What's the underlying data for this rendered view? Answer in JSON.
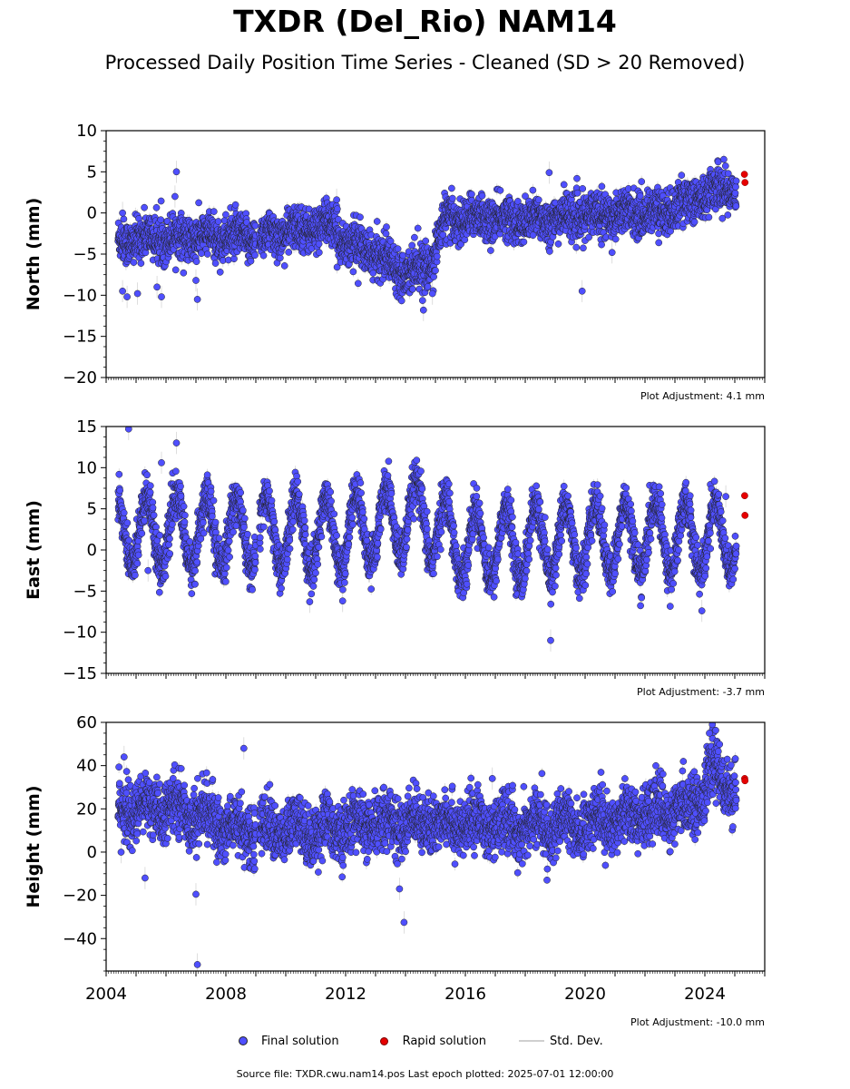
{
  "figure": {
    "title": "TXDR (Del_Rio) NAM14",
    "subtitle": "Processed Daily Position Time Series - Cleaned (SD > 20 Removed)",
    "source_note": "Source file: TXDR.cwu.nam14.pos  Last epoch plotted: 2025-07-01 12:00:00"
  },
  "legend": {
    "final": "Final solution",
    "rapid": "Rapid solution",
    "stddev": "Std. Dev."
  },
  "colors": {
    "final_fill": "#4F4FFF",
    "final_edge": "#222222",
    "rapid": "#e60000",
    "stddev": "#cfcfcf"
  },
  "chart_data": [
    {
      "type": "scatter",
      "ylabel": "North (mm)",
      "ylim": [
        -20,
        10
      ],
      "yticks": [
        10,
        5,
        0,
        -5,
        -10,
        -15,
        -20
      ],
      "xlim": [
        2004.0,
        2026.0
      ],
      "xticks": [
        2004,
        2008,
        2012,
        2016,
        2020,
        2024
      ],
      "adjustment": "Plot Adjustment: 4.1 mm",
      "trend": [
        [
          2004.4,
          -3.5
        ],
        [
          2005.5,
          -3.0
        ],
        [
          2007.0,
          -3.0
        ],
        [
          2009.0,
          -3.0
        ],
        [
          2010.5,
          -2.0
        ],
        [
          2011.5,
          -1.5
        ],
        [
          2012.0,
          -3.5
        ],
        [
          2013.0,
          -5.0
        ],
        [
          2014.0,
          -7.0
        ],
        [
          2014.8,
          -6.5
        ],
        [
          2015.3,
          -1.0
        ],
        [
          2016.5,
          -0.5
        ],
        [
          2018.0,
          -1.0
        ],
        [
          2019.5,
          -0.5
        ],
        [
          2021.0,
          0.0
        ],
        [
          2022.5,
          0.0
        ],
        [
          2023.5,
          1.5
        ],
        [
          2024.5,
          3.0
        ],
        [
          2025.0,
          3.0
        ]
      ],
      "noise_sd": 1.3,
      "season_amp": 0.5,
      "outliers": [
        [
          2006.35,
          5.0
        ],
        [
          2006.3,
          2.0
        ],
        [
          2005.05,
          -9.8
        ],
        [
          2005.7,
          -9.0
        ],
        [
          2005.85,
          -10.2
        ],
        [
          2007.05,
          -10.5
        ],
        [
          2007.0,
          -8.2
        ],
        [
          2004.7,
          -10.2
        ],
        [
          2014.6,
          -11.8
        ],
        [
          2014.9,
          -9.8
        ],
        [
          2019.9,
          -9.5
        ],
        [
          2018.8,
          4.9
        ],
        [
          2004.55,
          -9.5
        ],
        [
          2004.55,
          0.0
        ],
        [
          2011.7,
          1.6
        ],
        [
          2020.9,
          -4.8
        ]
      ],
      "rapid": [
        [
          2025.32,
          4.7
        ],
        [
          2025.34,
          3.7
        ]
      ]
    },
    {
      "type": "scatter",
      "ylabel": "East (mm)",
      "ylim": [
        -15,
        15
      ],
      "yticks": [
        15,
        10,
        5,
        0,
        -5,
        -10,
        -15
      ],
      "xlim": [
        2004.0,
        2026.0
      ],
      "xticks": [
        2004,
        2008,
        2012,
        2016,
        2020,
        2024
      ],
      "adjustment": "Plot Adjustment: -3.7 mm",
      "trend": [
        [
          2004.4,
          2.5
        ],
        [
          2008.0,
          2.0
        ],
        [
          2012.0,
          2.0
        ],
        [
          2014.5,
          4.0
        ],
        [
          2016.0,
          0.5
        ],
        [
          2019.0,
          1.0
        ],
        [
          2022.0,
          1.5
        ],
        [
          2025.0,
          1.5
        ]
      ],
      "noise_sd": 1.3,
      "season_amp": 4.3,
      "outliers": [
        [
          2004.75,
          14.7
        ],
        [
          2006.35,
          13.0
        ],
        [
          2005.85,
          10.6
        ],
        [
          2018.85,
          -11.0
        ],
        [
          2023.9,
          -7.4
        ],
        [
          2010.8,
          -6.3
        ],
        [
          2011.9,
          -6.2
        ],
        [
          2024.7,
          6.5
        ],
        [
          2005.4,
          -2.5
        ]
      ],
      "rapid": [
        [
          2025.33,
          6.6
        ],
        [
          2025.34,
          4.2
        ]
      ]
    },
    {
      "type": "scatter",
      "ylabel": "Height (mm)",
      "ylim": [
        -55,
        60
      ],
      "yticks": [
        60,
        40,
        20,
        0,
        -20,
        -40
      ],
      "xlim": [
        2004.0,
        2026.0
      ],
      "xticks": [
        2004,
        2008,
        2012,
        2016,
        2020,
        2024
      ],
      "adjustment": "Plot Adjustment: -10.0 mm",
      "trend": [
        [
          2004.4,
          20.0
        ],
        [
          2006.5,
          20.0
        ],
        [
          2008.5,
          10.0
        ],
        [
          2011.0,
          10.0
        ],
        [
          2013.0,
          13.0
        ],
        [
          2015.0,
          14.0
        ],
        [
          2017.0,
          12.0
        ],
        [
          2019.5,
          12.0
        ],
        [
          2021.5,
          17.0
        ],
        [
          2023.5,
          20.0
        ],
        [
          2024.3,
          38.0
        ],
        [
          2025.0,
          27.0
        ]
      ],
      "noise_sd": 6.5,
      "season_amp": 4.0,
      "outliers": [
        [
          2007.05,
          -52.0
        ],
        [
          2007.0,
          -19.5
        ],
        [
          2013.95,
          -32.5
        ],
        [
          2008.6,
          48.0
        ],
        [
          2024.25,
          59.0
        ],
        [
          2024.15,
          55.0
        ],
        [
          2013.8,
          -17.0
        ],
        [
          2005.3,
          -12.0
        ],
        [
          2004.6,
          44.0
        ],
        [
          2004.5,
          0.0
        ],
        [
          2016.9,
          34.0
        ]
      ],
      "rapid": [
        [
          2025.33,
          34.0
        ],
        [
          2025.34,
          33.0
        ]
      ]
    }
  ],
  "x_tick_labels": [
    "2004",
    "2008",
    "2012",
    "2016",
    "2020",
    "2024"
  ]
}
